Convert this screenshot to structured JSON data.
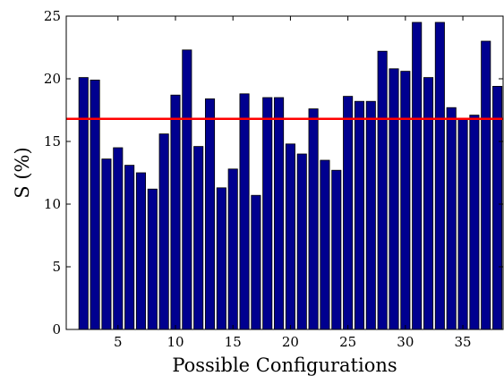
{
  "chart_data": {
    "type": "bar",
    "xlabel": "Possible Configurations",
    "ylabel": "S (%)",
    "xlim": [
      0.5,
      38.5
    ],
    "ylim": [
      0,
      25
    ],
    "x_ticks": [
      5,
      10,
      15,
      20,
      25,
      30,
      35
    ],
    "y_ticks": [
      0,
      5,
      10,
      15,
      20,
      25
    ],
    "categories": [
      2,
      3,
      4,
      5,
      6,
      7,
      8,
      9,
      10,
      11,
      12,
      13,
      14,
      15,
      16,
      17,
      18,
      19,
      20,
      21,
      22,
      23,
      24,
      25,
      26,
      27,
      28,
      29,
      30,
      31,
      32,
      33,
      34,
      35,
      36,
      37,
      38
    ],
    "values": [
      20.1,
      19.9,
      13.6,
      14.5,
      13.1,
      12.5,
      11.2,
      15.6,
      18.7,
      22.3,
      14.6,
      18.4,
      11.3,
      12.8,
      18.8,
      10.7,
      18.5,
      18.5,
      14.8,
      14.0,
      17.6,
      13.5,
      12.7,
      18.6,
      18.2,
      18.2,
      22.2,
      20.8,
      20.6,
      24.5,
      20.1,
      24.5,
      17.7,
      16.8,
      17.1,
      23.0,
      19.4
    ],
    "reference_line": {
      "value": 16.8,
      "color": "#ff0000"
    },
    "bar_color": "#00008f",
    "grid": false,
    "legend": "none"
  }
}
